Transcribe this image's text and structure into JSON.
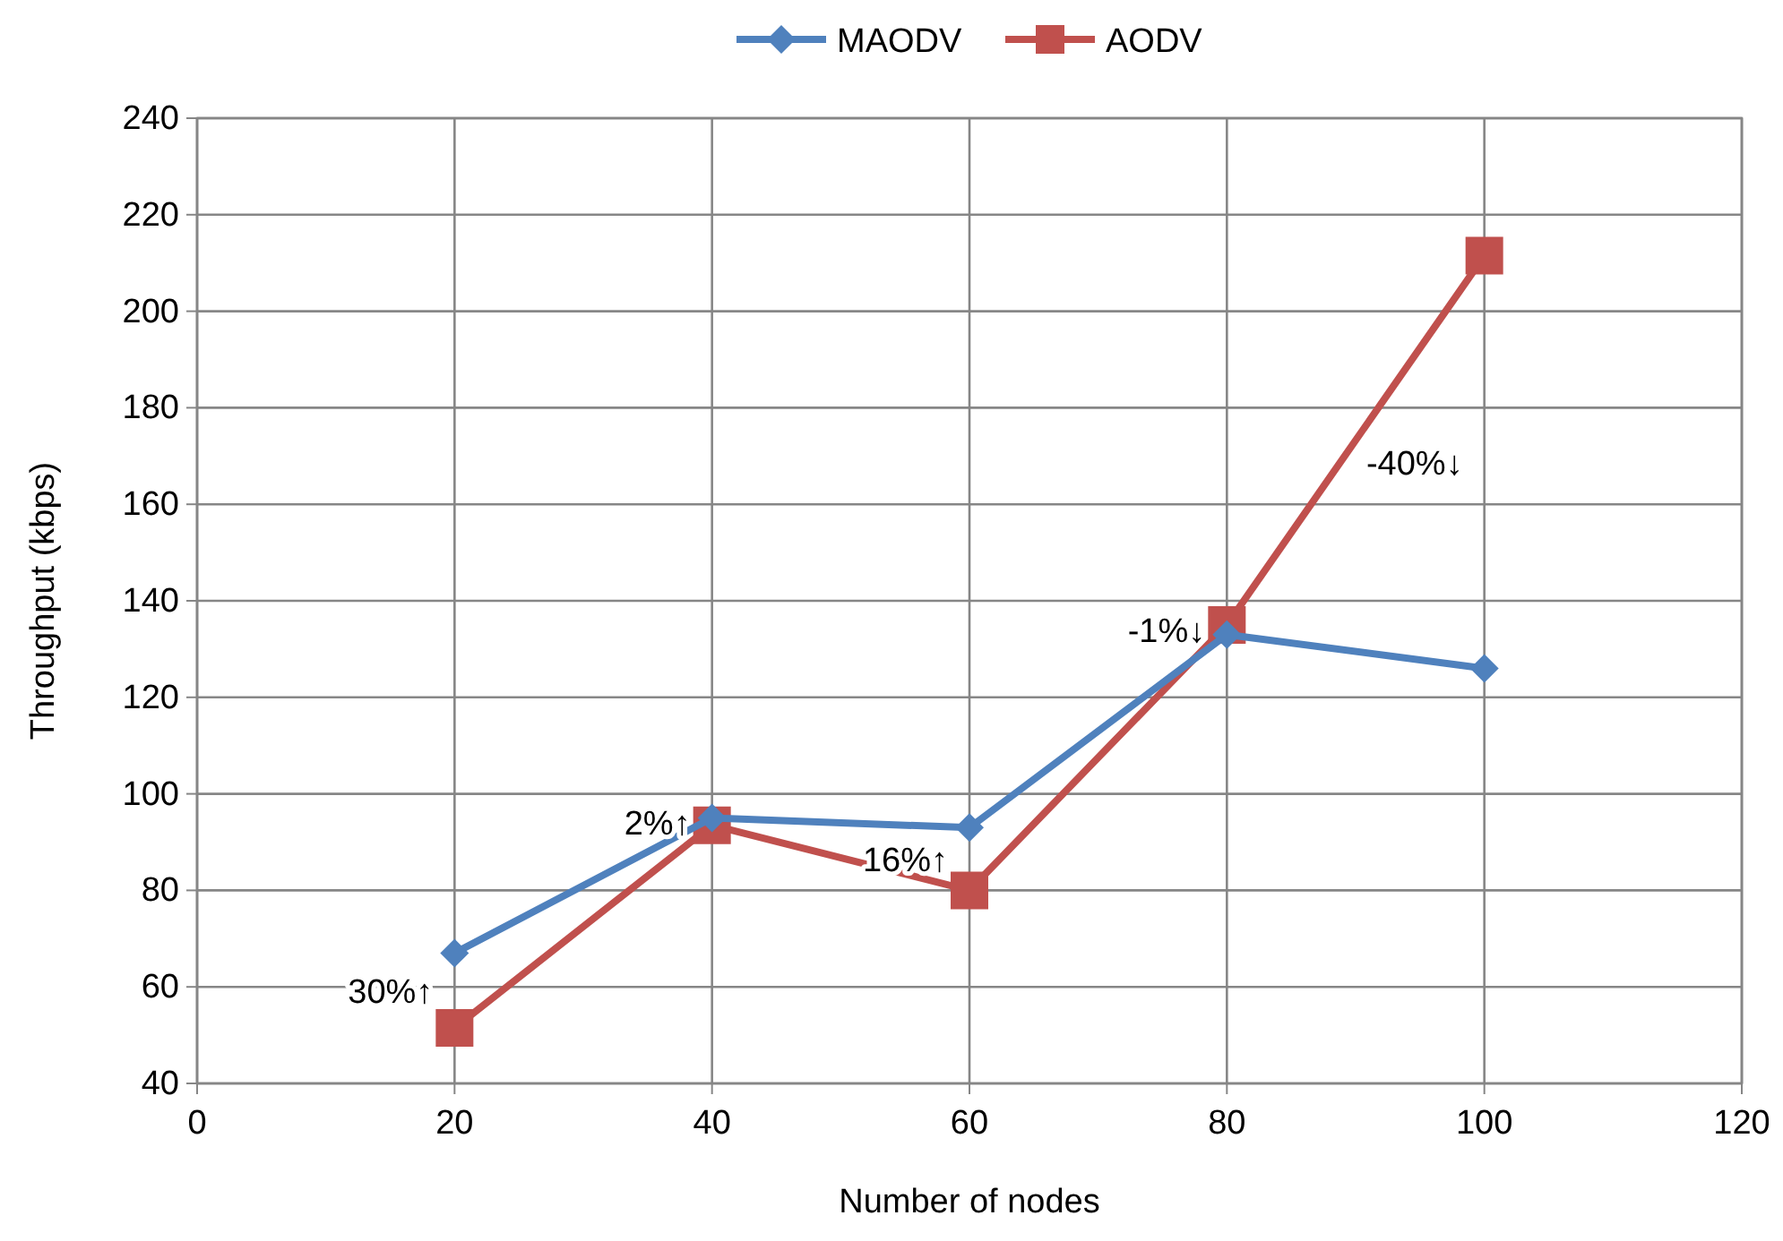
{
  "chart_data": {
    "type": "line",
    "xlabel": "Number of nodes",
    "ylabel": "Throughput (kbps)",
    "x": [
      20,
      40,
      60,
      80,
      100
    ],
    "series": [
      {
        "name": "MAODV",
        "color": "#4f81bd",
        "marker": "diamond",
        "values": [
          67,
          95,
          93,
          133,
          126
        ]
      },
      {
        "name": "AODV",
        "color": "#c0504d",
        "marker": "square",
        "values": [
          51.5,
          93.5,
          80,
          135,
          211.5
        ]
      }
    ],
    "xlim": [
      0,
      120
    ],
    "xticks": [
      0,
      20,
      40,
      60,
      80,
      100,
      120
    ],
    "ylim": [
      40,
      240
    ],
    "yticks": [
      40,
      60,
      80,
      100,
      120,
      140,
      160,
      180,
      200,
      220,
      240
    ],
    "grid": true,
    "legend": "top",
    "line_style": "solid",
    "annotations": [
      "30%↑",
      "2%↑",
      "16%↑",
      "-1%↓",
      "-40%↓"
    ]
  }
}
